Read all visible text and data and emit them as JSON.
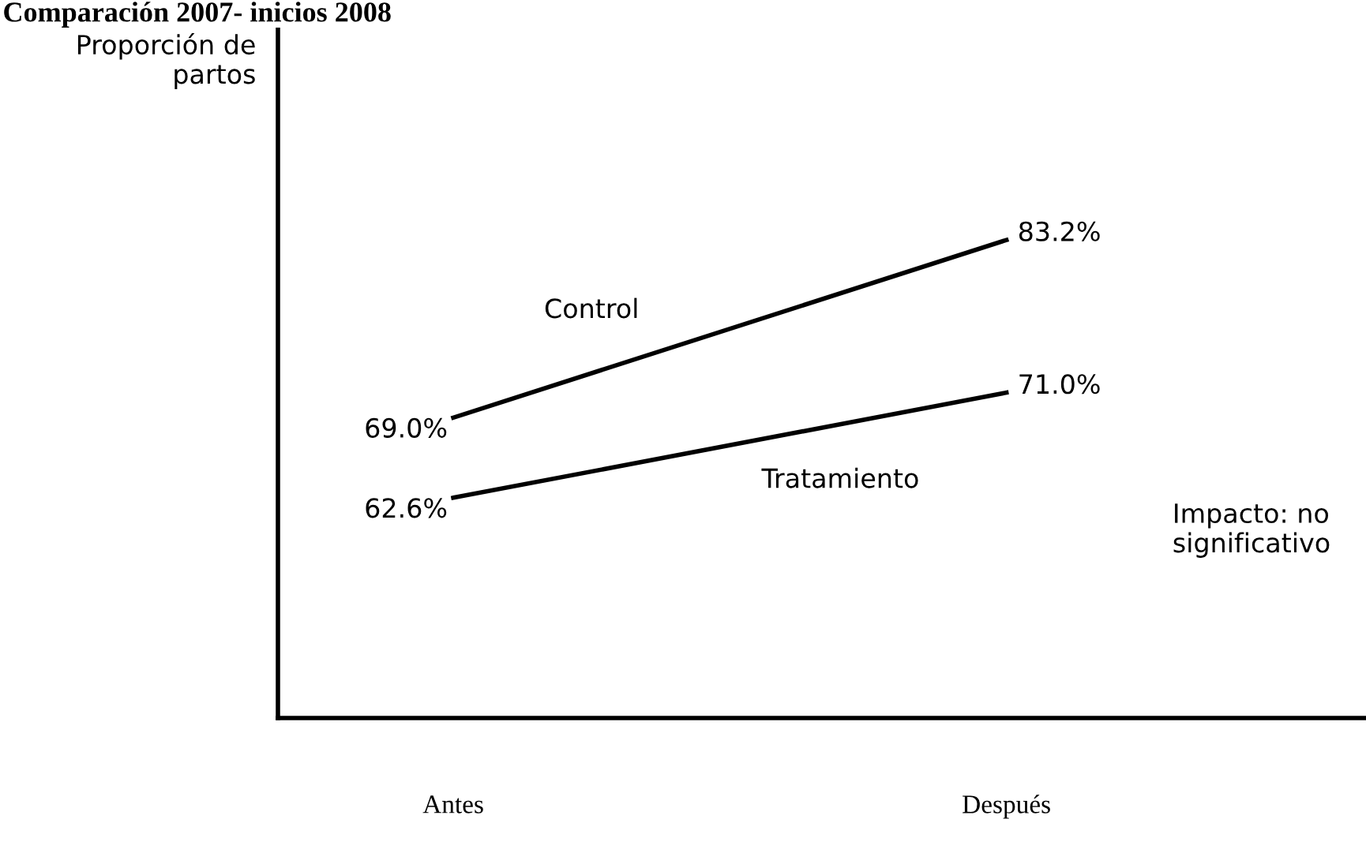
{
  "chart_data": {
    "type": "line",
    "title": "Comparación 2007- inicios 2008",
    "ylabel": "Proporción de\npartos",
    "categories": [
      "Antes",
      "Después"
    ],
    "series": [
      {
        "name": "Control",
        "color": "#000000",
        "values": [
          69.0,
          83.2
        ],
        "value_labels": [
          "69.0%",
          "83.2%"
        ]
      },
      {
        "name": "Tratamiento",
        "color": "#000000",
        "values": [
          62.6,
          71.0
        ],
        "value_labels": [
          "62.6%",
          "71.0%"
        ]
      }
    ],
    "ylim": [
      45,
      100
    ],
    "tick_labels": "x",
    "grid": false,
    "legend": false,
    "marker": "none",
    "line_style": "solid",
    "annotations": [
      "Impacto: no\nsignificativo"
    ]
  }
}
